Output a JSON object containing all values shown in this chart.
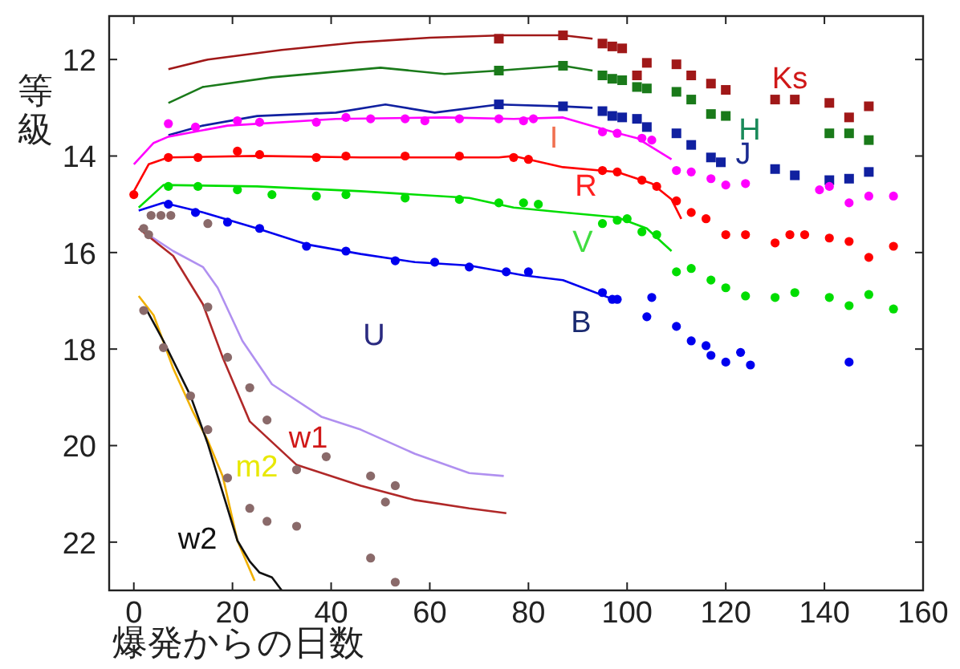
{
  "chart_data": {
    "type": "line",
    "xlabel": "爆発からの日数",
    "ylabel": "等級",
    "xlim": [
      -5,
      160
    ],
    "ylim": [
      23,
      11.1
    ],
    "xticks": [
      0,
      20,
      40,
      60,
      80,
      100,
      120,
      140,
      160
    ],
    "yticks": [
      12,
      14,
      16,
      18,
      20,
      22
    ],
    "grid": false,
    "line_style": "solid",
    "series": [
      {
        "type": "line",
        "color": "#a01818",
        "x": [
          7,
          15,
          30,
          45,
          60,
          75,
          87,
          93
        ],
        "values": [
          12.2,
          12.0,
          11.8,
          11.65,
          11.55,
          11.5,
          11.5,
          11.57
        ]
      },
      {
        "type": "scatter",
        "marker": "square",
        "color": "#a01818",
        "x": [
          74,
          87,
          95,
          97,
          99,
          102,
          104,
          110,
          113,
          117,
          120,
          130,
          134,
          141,
          145,
          149
        ],
        "values": [
          11.57,
          11.5,
          11.67,
          11.73,
          11.77,
          12.33,
          12.07,
          12.1,
          12.33,
          12.5,
          12.63,
          12.83,
          12.83,
          12.9,
          13.2,
          12.97
        ]
      },
      {
        "type": "line",
        "color": "#1a7a1a",
        "x": [
          7,
          14,
          28,
          50,
          63,
          74,
          87,
          93
        ],
        "values": [
          12.9,
          12.57,
          12.37,
          12.17,
          12.3,
          12.23,
          12.13,
          12.23
        ]
      },
      {
        "type": "scatter",
        "marker": "square",
        "color": "#1a7a1a",
        "x": [
          74,
          87,
          95,
          97,
          99,
          102,
          104,
          110,
          113,
          117,
          120,
          141,
          145,
          149
        ],
        "values": [
          12.23,
          12.13,
          12.33,
          12.4,
          12.43,
          12.57,
          12.6,
          12.67,
          12.83,
          13.13,
          13.17,
          13.53,
          13.53,
          13.67
        ]
      },
      {
        "type": "line",
        "color": "#1020a0",
        "x": [
          7,
          14,
          25,
          41,
          51,
          61,
          74,
          87,
          93
        ],
        "values": [
          13.57,
          13.37,
          13.17,
          13.1,
          12.93,
          13.1,
          12.93,
          12.97,
          13.0
        ]
      },
      {
        "type": "scatter",
        "marker": "square",
        "color": "#1020a0",
        "x": [
          74,
          87,
          95,
          97,
          99,
          102,
          104,
          110,
          113,
          117,
          119,
          130,
          134,
          141,
          145,
          149
        ],
        "values": [
          12.93,
          12.97,
          13.07,
          13.17,
          13.2,
          13.23,
          13.4,
          13.53,
          13.77,
          14.03,
          14.13,
          14.27,
          14.4,
          14.5,
          14.47,
          14.33
        ]
      },
      {
        "type": "line",
        "color": "#ff00ff",
        "x": [
          0,
          4,
          7,
          19,
          41,
          63,
          77,
          87,
          96,
          102,
          109
        ],
        "values": [
          14.17,
          13.73,
          13.6,
          13.37,
          13.23,
          13.2,
          13.23,
          13.2,
          13.47,
          13.63,
          14.07
        ]
      },
      {
        "type": "scatter",
        "marker": "circle",
        "color": "#ff00ff",
        "x": [
          7,
          12.5,
          21,
          25.5,
          37,
          43,
          48,
          55,
          59,
          66,
          74,
          79,
          81,
          95,
          98,
          103,
          105,
          110,
          113,
          117,
          120,
          124,
          139,
          141,
          145,
          149,
          154
        ],
        "values": [
          13.33,
          13.4,
          13.27,
          13.3,
          13.3,
          13.2,
          13.23,
          13.23,
          13.27,
          13.23,
          13.23,
          13.27,
          13.23,
          13.5,
          13.53,
          13.63,
          13.67,
          14.3,
          14.33,
          14.47,
          14.6,
          14.57,
          14.7,
          14.63,
          14.97,
          14.83,
          14.83
        ]
      },
      {
        "type": "line",
        "color": "#ff0000",
        "x": [
          0,
          3,
          7,
          25,
          46,
          74,
          77,
          87,
          98,
          105,
          109,
          111
        ],
        "values": [
          14.73,
          14.17,
          14.03,
          14.0,
          14.03,
          14.03,
          14.0,
          14.23,
          14.33,
          14.57,
          14.9,
          15.3
        ]
      },
      {
        "type": "scatter",
        "marker": "circle",
        "color": "#ff0000",
        "x": [
          0,
          7,
          13,
          21,
          25.5,
          37,
          43,
          55,
          66,
          77,
          80,
          95,
          98,
          103,
          106,
          110,
          113,
          116,
          120,
          124,
          130,
          133,
          136,
          141,
          145,
          149,
          154
        ],
        "values": [
          14.8,
          14.03,
          14.03,
          13.9,
          13.97,
          14.03,
          14.0,
          14.0,
          14.0,
          14.03,
          14.07,
          14.3,
          14.33,
          14.5,
          14.63,
          14.93,
          15.17,
          15.3,
          15.63,
          15.63,
          15.8,
          15.63,
          15.63,
          15.7,
          15.77,
          16.1,
          15.87
        ]
      },
      {
        "type": "line",
        "color": "#00dd00",
        "x": [
          1,
          6,
          25,
          46,
          68,
          77,
          87,
          98,
          104,
          109
        ],
        "values": [
          15.07,
          14.6,
          14.63,
          14.73,
          14.87,
          15.07,
          15.17,
          15.27,
          15.5,
          15.97
        ]
      },
      {
        "type": "scatter",
        "marker": "circle",
        "color": "#00dd00",
        "x": [
          7,
          13,
          21,
          28,
          37,
          43,
          55,
          66,
          74,
          79,
          82,
          95,
          98,
          100,
          103,
          106,
          110,
          113,
          117,
          120,
          124,
          130,
          134,
          141,
          145,
          149,
          154
        ],
        "values": [
          14.63,
          14.63,
          14.7,
          14.8,
          14.83,
          14.8,
          14.87,
          14.9,
          14.97,
          14.97,
          15.0,
          15.4,
          15.33,
          15.3,
          15.57,
          15.63,
          16.4,
          16.33,
          16.57,
          16.73,
          16.9,
          16.93,
          16.83,
          16.93,
          17.1,
          16.87,
          17.17
        ]
      },
      {
        "type": "line",
        "color": "#0000ee",
        "x": [
          1,
          6,
          14,
          25,
          35,
          46,
          57,
          68,
          79,
          87,
          98
        ],
        "values": [
          15.13,
          14.97,
          15.17,
          15.5,
          15.83,
          16.03,
          16.2,
          16.27,
          16.47,
          16.57,
          17.0
        ]
      },
      {
        "type": "scatter",
        "marker": "circle",
        "color": "#0000ee",
        "x": [
          7,
          12.5,
          19,
          25.5,
          35,
          43,
          53,
          61,
          68,
          75.5,
          80,
          95,
          97,
          98,
          105,
          104,
          110,
          113,
          116,
          117,
          120,
          123,
          125,
          145
        ],
        "values": [
          15.0,
          15.17,
          15.37,
          15.5,
          15.87,
          15.97,
          16.17,
          16.2,
          16.3,
          16.4,
          16.4,
          16.83,
          16.97,
          16.97,
          16.93,
          17.33,
          17.53,
          17.83,
          17.93,
          18.13,
          18.27,
          18.07,
          18.33,
          18.27
        ]
      },
      {
        "type": "line",
        "color": "#b090f0",
        "x": [
          1,
          8,
          14,
          17,
          22,
          28,
          38,
          46,
          57,
          68,
          75
        ],
        "values": [
          15.5,
          15.97,
          16.3,
          16.73,
          17.83,
          18.73,
          19.4,
          19.67,
          20.17,
          20.57,
          20.63
        ]
      },
      {
        "type": "line",
        "color": "#b02828",
        "x": [
          1,
          5,
          8,
          14,
          18,
          23.5,
          33,
          46,
          57,
          68,
          75.5
        ],
        "values": [
          15.5,
          15.83,
          16.07,
          17.07,
          18.17,
          19.5,
          20.4,
          20.83,
          21.13,
          21.3,
          21.4
        ]
      },
      {
        "type": "line",
        "color": "#f0b000",
        "x": [
          1,
          4,
          8,
          12,
          15,
          18,
          21,
          24.5
        ],
        "values": [
          16.9,
          17.3,
          18.4,
          19.3,
          19.9,
          20.63,
          21.97,
          22.8
        ]
      },
      {
        "type": "line",
        "color": "#111111",
        "x": [
          2.5,
          6,
          11.5,
          15,
          18,
          21,
          23.5,
          25.5,
          28,
          30
        ],
        "values": [
          17.17,
          17.83,
          18.97,
          19.97,
          20.97,
          21.97,
          22.4,
          22.63,
          22.73,
          23.0
        ]
      },
      {
        "type": "scatter",
        "marker": "circle",
        "color": "#8a6a6a",
        "x": [
          2,
          3,
          3.5,
          5.5,
          7.5,
          15,
          2,
          6,
          11.5,
          15,
          19,
          23.5,
          27,
          33,
          15,
          19,
          23.5,
          27,
          39,
          33,
          48,
          53,
          51,
          48,
          53
        ],
        "values": [
          15.5,
          15.63,
          15.23,
          15.23,
          15.23,
          15.4,
          17.2,
          17.97,
          18.97,
          19.67,
          20.67,
          21.3,
          21.57,
          21.67,
          17.13,
          18.17,
          18.8,
          19.47,
          20.23,
          20.5,
          20.63,
          20.83,
          21.17,
          22.33,
          22.83
        ]
      }
    ],
    "annotations": [
      "Ks",
      "H",
      "J",
      "I",
      "R",
      "V",
      "B",
      "U",
      "w1",
      "m2",
      "w2"
    ]
  }
}
